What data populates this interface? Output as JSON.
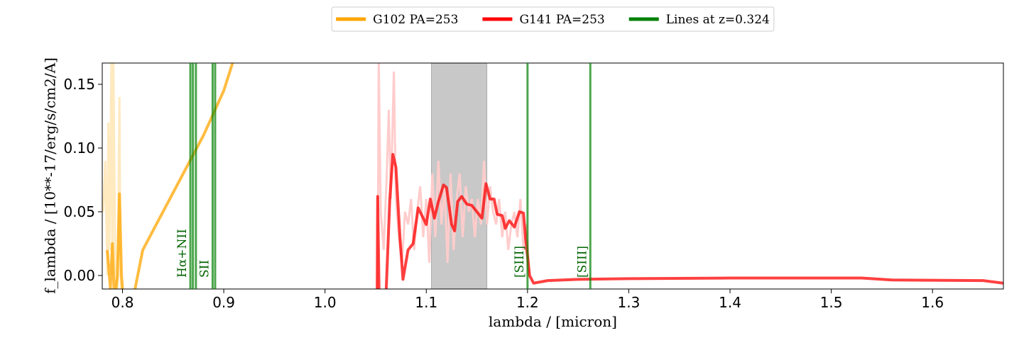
{
  "chart_data": {
    "type": "line",
    "xlabel": "lambda / [micron]",
    "ylabel": "f_lambda / [10**-17/erg/s/cm2/A]",
    "xlim": [
      0.78,
      1.67
    ],
    "ylim": [
      -0.0106,
      0.1667
    ],
    "xticks": [
      0.8,
      0.9,
      {
        "value": 1,
        "label": "1.0"
      },
      1.1,
      1.2,
      1.3,
      1.4,
      1.5,
      1.6
    ],
    "yticks": [
      {
        "value": 0,
        "label": "0.00"
      },
      {
        "value": 0.05,
        "label": "0.05"
      },
      {
        "value": 0.1,
        "label": "0.10"
      },
      {
        "value": 0.15,
        "label": "0.15"
      }
    ],
    "shade": {
      "range": [
        1.105,
        1.16
      ],
      "color": "#b0b0b0"
    },
    "series": [
      {
        "name": "G102 PA=253",
        "color": "orange",
        "raw_color": "#ffe9bf",
        "raw_x": [
          0.781,
          0.783,
          0.785,
          0.786,
          0.787,
          0.788,
          0.789,
          0.79,
          0.791,
          0.793,
          0.795,
          0.797,
          0.798,
          0.8
        ],
        "raw_values": [
          0.05,
          0.09,
          0.0,
          0.12,
          0.02,
          0.08,
          0.17,
          0.0,
          0.17,
          0.0,
          -0.02,
          0.14,
          0.0,
          -0.03
        ],
        "x": [
          0.785,
          0.788,
          0.79,
          0.792,
          0.795,
          0.797,
          0.799,
          0.802,
          0.81,
          0.82,
          0.84,
          0.86,
          0.88,
          0.9,
          0.91
        ],
        "values": [
          0.02,
          -0.01,
          0.025,
          -0.02,
          0.0,
          0.064,
          0.0,
          -0.03,
          -0.02,
          0.02,
          0.05,
          0.08,
          0.11,
          0.145,
          0.17
        ]
      },
      {
        "name": "G141 PA=253",
        "color": "red",
        "raw_color": "#ffcccc",
        "raw_x": [
          1.052,
          1.053,
          1.055,
          1.058,
          1.061,
          1.063,
          1.065,
          1.068,
          1.07,
          1.073,
          1.076,
          1.079,
          1.082,
          1.085,
          1.088,
          1.091,
          1.094,
          1.097,
          1.1,
          1.103,
          1.106,
          1.109,
          1.112,
          1.115,
          1.118,
          1.121,
          1.124,
          1.127,
          1.13,
          1.133,
          1.136,
          1.139,
          1.142,
          1.145,
          1.148,
          1.151,
          1.154,
          1.157,
          1.16,
          1.163,
          1.166,
          1.169,
          1.172,
          1.175,
          1.178,
          1.181,
          1.184,
          1.187,
          1.19,
          1.193,
          1.196,
          1.199,
          1.202
        ],
        "raw_values": [
          -0.02,
          0.17,
          0.05,
          0.02,
          0.08,
          0.13,
          0.06,
          0.16,
          0.06,
          0.03,
          0.01,
          0.05,
          0.04,
          0.06,
          0.02,
          0.05,
          0.07,
          0.03,
          0.06,
          0.01,
          0.08,
          0.03,
          0.09,
          0.04,
          0.07,
          0.01,
          0.08,
          0.02,
          0.06,
          0.08,
          0.03,
          0.07,
          0.05,
          0.06,
          0.03,
          0.06,
          0.04,
          0.09,
          0.04,
          0.07,
          0.05,
          0.04,
          0.06,
          0.03,
          0.05,
          0.02,
          0.04,
          0.05,
          0.03,
          0.06,
          0.02,
          0.04,
          0.0
        ],
        "x": [
          1.0515,
          1.052,
          1.0535,
          1.06,
          1.064,
          1.067,
          1.07,
          1.074,
          1.077,
          1.082,
          1.087,
          1.092,
          1.097,
          1.1,
          1.104,
          1.108,
          1.112,
          1.117,
          1.12,
          1.125,
          1.128,
          1.131,
          1.135,
          1.14,
          1.145,
          1.15,
          1.155,
          1.159,
          1.163,
          1.167,
          1.17,
          1.175,
          1.178,
          1.182,
          1.187,
          1.192,
          1.196,
          1.198,
          1.202,
          1.206,
          1.22,
          1.25,
          1.3,
          1.4,
          1.5,
          1.53,
          1.56,
          1.65,
          1.67
        ],
        "values": [
          -0.02,
          0.062,
          -0.02,
          -0.02,
          0.06,
          0.095,
          0.085,
          0.03,
          -0.003,
          0.02,
          0.025,
          0.053,
          0.045,
          0.04,
          0.06,
          0.045,
          0.058,
          0.071,
          0.069,
          0.04,
          0.035,
          0.058,
          0.062,
          0.056,
          0.055,
          0.05,
          0.045,
          0.072,
          0.06,
          0.06,
          0.048,
          0.047,
          0.037,
          0.043,
          0.038,
          0.05,
          0.049,
          0.03,
          0.0,
          -0.006,
          -0.004,
          -0.003,
          -0.0025,
          -0.002,
          -0.002,
          -0.002,
          -0.0035,
          -0.004,
          -0.006
        ]
      }
    ],
    "lines": {
      "name": "Lines at z=0.324",
      "color": "green",
      "x": [
        0.867,
        0.8695,
        0.8725,
        0.889,
        0.8915,
        1.2,
        1.262
      ],
      "labels": [
        "Hα+NII",
        null,
        null,
        "SII",
        null,
        "[SIII]",
        "[SIII]"
      ]
    }
  }
}
